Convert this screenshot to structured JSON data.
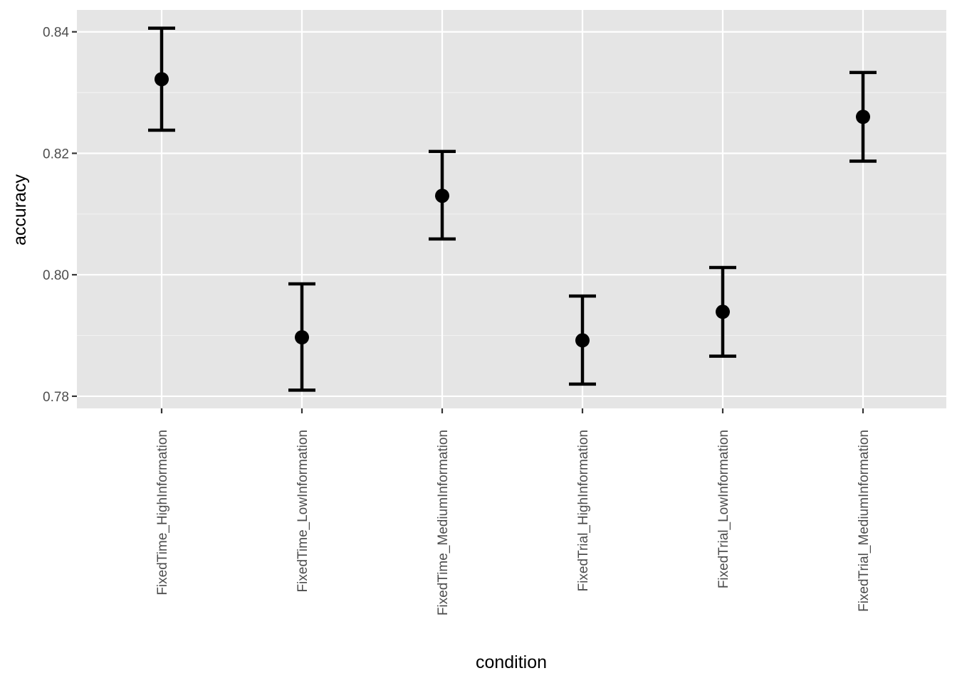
{
  "chart_data": {
    "type": "scatter",
    "xlabel": "condition",
    "ylabel": "accuracy",
    "categories": [
      "FixedTime_HighInformation",
      "FixedTime_LowInformation",
      "FixedTime_MediumInformation",
      "FixedTrial_HighInformation",
      "FixedTrial_LowInformation",
      "FixedTrial_MediumInformation"
    ],
    "values": [
      0.8322,
      0.7897,
      0.813,
      0.7892,
      0.7939,
      0.826
    ],
    "error_low": [
      0.8238,
      0.781,
      0.8059,
      0.782,
      0.7866,
      0.8187
    ],
    "error_high": [
      0.8406,
      0.7985,
      0.8203,
      0.7965,
      0.8012,
      0.8333
    ],
    "ylim": [
      0.778,
      0.8436
    ],
    "yticks": [
      0.78,
      0.8,
      0.82,
      0.84
    ],
    "ytick_labels": [
      "0.78",
      "0.80",
      "0.82",
      "0.84"
    ],
    "grid": true,
    "colors": {
      "panel": "#e5e5e5",
      "grid": "#ffffff",
      "marks": "#000000"
    }
  }
}
